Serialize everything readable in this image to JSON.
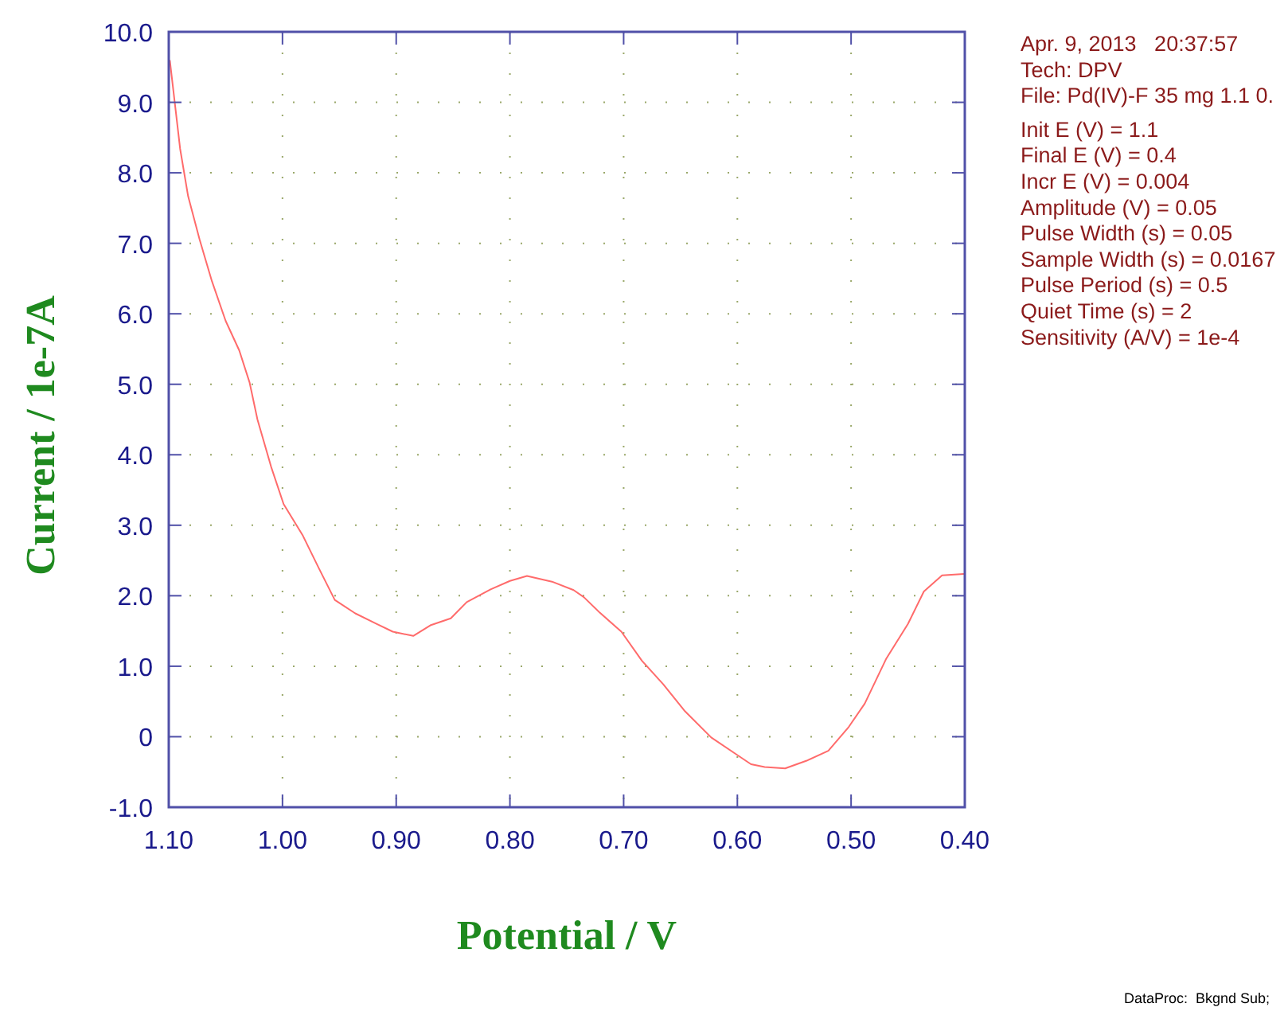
{
  "chart_data": {
    "type": "line",
    "xlabel": "Potential / V",
    "ylabel": "Current / 1e-7A",
    "x": [
      1.099,
      1.09,
      1.083,
      1.073,
      1.062,
      1.05,
      1.038,
      1.029,
      1.022,
      1.01,
      0.999,
      0.982,
      0.968,
      0.954,
      0.936,
      0.917,
      0.903,
      0.885,
      0.87,
      0.852,
      0.838,
      0.817,
      0.8,
      0.785,
      0.763,
      0.744,
      0.735,
      0.721,
      0.702,
      0.684,
      0.665,
      0.646,
      0.623,
      0.6,
      0.588,
      0.576,
      0.558,
      0.539,
      0.52,
      0.502,
      0.488,
      0.469,
      0.45,
      0.436,
      0.42,
      0.401
    ],
    "series": [
      {
        "color": "#ff6b6b",
        "values": [
          9.59,
          8.34,
          7.67,
          7.06,
          6.46,
          5.9,
          5.48,
          5.03,
          4.5,
          3.83,
          3.3,
          2.85,
          2.39,
          1.94,
          1.75,
          1.6,
          1.49,
          1.43,
          1.58,
          1.68,
          1.91,
          2.09,
          2.21,
          2.28,
          2.2,
          2.08,
          1.98,
          1.76,
          1.49,
          1.08,
          0.74,
          0.36,
          -0.01,
          -0.26,
          -0.39,
          -0.43,
          -0.45,
          -0.34,
          -0.2,
          0.14,
          0.47,
          1.11,
          1.6,
          2.06,
          2.29,
          2.31
        ]
      }
    ],
    "xlim": [
      1.1,
      0.4
    ],
    "xticks": [
      {
        "value": 1.1,
        "label": "1.10"
      },
      {
        "value": 1.0,
        "label": "1.00"
      },
      {
        "value": 0.9,
        "label": "0.90"
      },
      {
        "value": 0.8,
        "label": "0.80"
      },
      {
        "value": 0.7,
        "label": "0.70"
      },
      {
        "value": 0.6,
        "label": "0.60"
      },
      {
        "value": 0.5,
        "label": "0.50"
      },
      {
        "value": 0.4,
        "label": "0.40"
      }
    ],
    "ylim": [
      -1.0,
      10.0
    ],
    "yticks": [
      {
        "value": 10,
        "label": "10.0"
      },
      {
        "value": 9,
        "label": "9.0"
      },
      {
        "value": 8,
        "label": "8.0"
      },
      {
        "value": 7,
        "label": "7.0"
      },
      {
        "value": 6,
        "label": "6.0"
      },
      {
        "value": 5,
        "label": "5.0"
      },
      {
        "value": 4,
        "label": "4.0"
      },
      {
        "value": 3,
        "label": "3.0"
      },
      {
        "value": 2,
        "label": "2.0"
      },
      {
        "value": 1,
        "label": "1.0"
      },
      {
        "value": 0,
        "label": "0"
      },
      {
        "value": -1,
        "label": "-1.0"
      }
    ],
    "grid": true,
    "line_style": "solid",
    "marker": "none",
    "annotations": [
      "Apr. 9, 2013   20:37:57",
      "Tech: DPV",
      "File: Pd(IV)-F 35 mg 1.1 0.",
      "Init E (V) = 1.1",
      "Final E (V) = 0.4",
      "Incr E (V) = 0.004",
      "Amplitude (V) = 0.05",
      "Pulse Width (s) = 0.05",
      "Sample Width (s) = 0.0167",
      "Pulse Period (s) = 0.5",
      "Quiet Time (s) = 2",
      "Sensitivity (A/V) = 1e-4",
      "DataProc:  Bkgnd Sub;"
    ]
  }
}
